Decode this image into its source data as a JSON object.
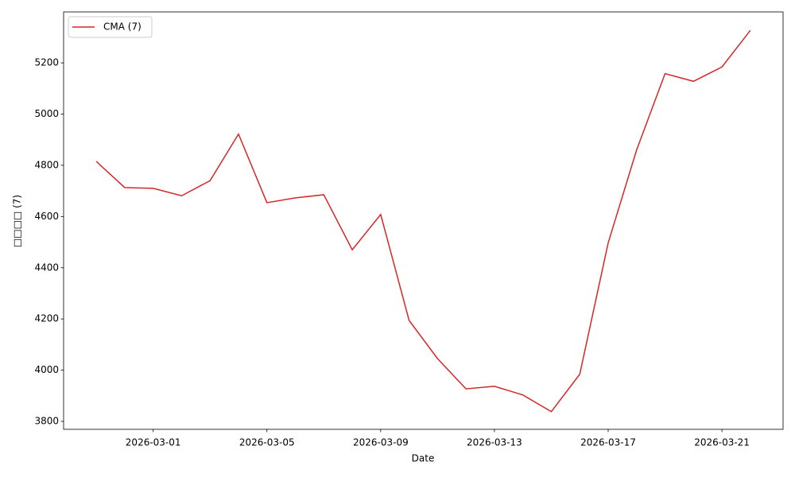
{
  "chart_data": {
    "type": "line",
    "x": [
      "2026-02-27",
      "2026-02-28",
      "2026-03-01",
      "2026-03-02",
      "2026-03-03",
      "2026-03-04",
      "2026-03-05",
      "2026-03-06",
      "2026-03-07",
      "2026-03-08",
      "2026-03-09",
      "2026-03-10",
      "2026-03-11",
      "2026-03-12",
      "2026-03-13",
      "2026-03-14",
      "2026-03-15",
      "2026-03-16",
      "2026-03-17",
      "2026-03-18",
      "2026-03-19",
      "2026-03-20",
      "2026-03-21",
      "2026-03-22"
    ],
    "series": [
      {
        "name": "CMA (7)",
        "color": "#d62728",
        "values": [
          4815,
          4713,
          4710,
          4681,
          4740,
          4922,
          4654,
          4673,
          4685,
          4470,
          4608,
          4194,
          4045,
          3927,
          3937,
          3903,
          3838,
          3984,
          4497,
          4860,
          5158,
          5128,
          5184,
          5327
        ]
      }
    ],
    "xlabel": "Date",
    "ylabel": "□□□□ (7)",
    "xticks": [
      "2026-03-01",
      "2026-03-05",
      "2026-03-09",
      "2026-03-13",
      "2026-03-17",
      "2026-03-21"
    ],
    "ylim": [
      3769,
      5399
    ],
    "yticks": [
      3800,
      4000,
      4200,
      4400,
      4600,
      4800,
      5000,
      5200
    ],
    "legend": "upper left"
  }
}
